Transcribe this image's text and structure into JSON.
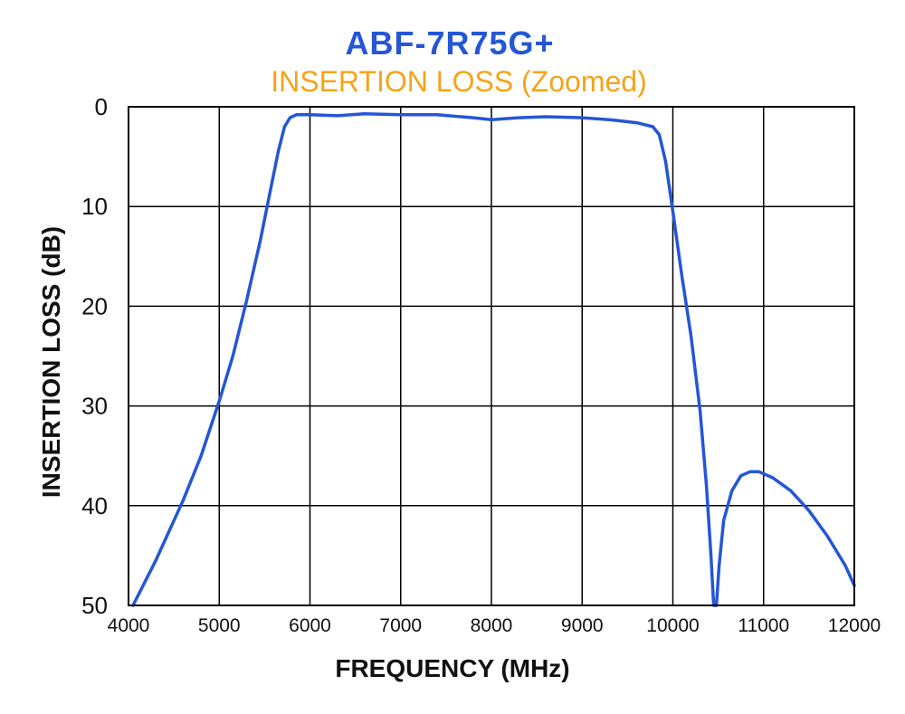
{
  "colors": {
    "title": "#2456d6",
    "subtitle": "#f5a418",
    "series": "#2456d6",
    "grid": "#000000"
  },
  "chart_data": {
    "type": "line",
    "title": "ABF-7R75G+",
    "subtitle": "INSERTION LOSS (Zoomed)",
    "xlabel": "FREQUENCY (MHz)",
    "ylabel": "INSERTION LOSS (dB)",
    "xlim": [
      4000,
      12000
    ],
    "ylim": [
      0,
      50
    ],
    "y_inverted": true,
    "grid": true,
    "xticks": [
      "4000",
      "5000",
      "6000",
      "7000",
      "8000",
      "9000",
      "10000",
      "11000",
      "12000"
    ],
    "yticks": [
      "0",
      "10",
      "20",
      "30",
      "40",
      "50"
    ],
    "series": [
      {
        "points": [
          [
            4050,
            50.0
          ],
          [
            4300,
            45.5
          ],
          [
            4600,
            39.5
          ],
          [
            4800,
            35.0
          ],
          [
            5000,
            29.5
          ],
          [
            5150,
            25.0
          ],
          [
            5300,
            19.5
          ],
          [
            5450,
            13.5
          ],
          [
            5550,
            9.0
          ],
          [
            5650,
            4.5
          ],
          [
            5720,
            2.0
          ],
          [
            5780,
            1.1
          ],
          [
            5850,
            0.8
          ],
          [
            6000,
            0.8
          ],
          [
            6300,
            0.9
          ],
          [
            6600,
            0.7
          ],
          [
            7000,
            0.8
          ],
          [
            7400,
            0.8
          ],
          [
            7800,
            1.1
          ],
          [
            8000,
            1.3
          ],
          [
            8300,
            1.1
          ],
          [
            8600,
            1.0
          ],
          [
            9000,
            1.1
          ],
          [
            9300,
            1.3
          ],
          [
            9600,
            1.6
          ],
          [
            9780,
            2.0
          ],
          [
            9850,
            2.8
          ],
          [
            9920,
            5.5
          ],
          [
            10000,
            10.5
          ],
          [
            10100,
            17.0
          ],
          [
            10200,
            23.0
          ],
          [
            10300,
            30.5
          ],
          [
            10370,
            38.0
          ],
          [
            10420,
            45.0
          ],
          [
            10450,
            50.0
          ],
          [
            10480,
            50.0
          ],
          [
            10510,
            46.0
          ],
          [
            10560,
            41.5
          ],
          [
            10650,
            38.5
          ],
          [
            10750,
            37.0
          ],
          [
            10850,
            36.6
          ],
          [
            10950,
            36.6
          ],
          [
            11100,
            37.2
          ],
          [
            11300,
            38.5
          ],
          [
            11500,
            40.5
          ],
          [
            11700,
            43.0
          ],
          [
            11900,
            46.0
          ],
          [
            12000,
            48.0
          ]
        ]
      }
    ]
  }
}
